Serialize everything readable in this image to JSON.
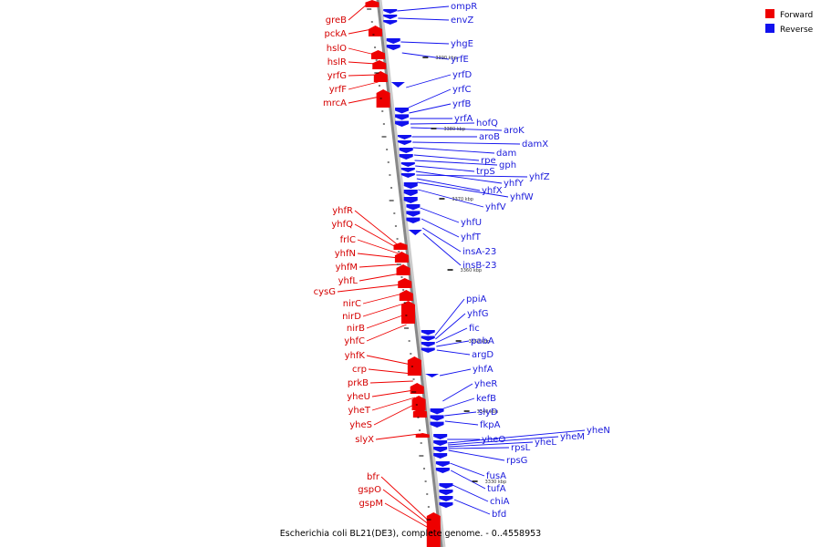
{
  "caption": "Escherichia coli BL21(DE3), complete genome. - 0..4558953",
  "legend": [
    {
      "label": "Forward",
      "color": "#ee0000"
    },
    {
      "label": "Reverse",
      "color": "#1111ee"
    }
  ],
  "colors": {
    "forward": "#ee0000",
    "reverse": "#1111ee",
    "forward_text": "#d40000",
    "reverse_text": "#1a1adb",
    "backbone": "#888888"
  },
  "ticks": [
    "3390 kbp",
    "3380 kbp",
    "3370 kbp",
    "3360 kbp",
    "3350 kbp",
    "3340 kbp",
    "3330 kbp"
  ],
  "forward_genes": [
    "greB",
    "pckA",
    "hslO",
    "hslR",
    "yrfG",
    "yrfF",
    "mrcA",
    "yhfR",
    "yhfQ",
    "frlC",
    "yhfN",
    "yhfM",
    "yhfL",
    "cysG",
    "nirC",
    "nirD",
    "nirB",
    "yhfC",
    "yhfK",
    "crp",
    "prkB",
    "yheU",
    "yheT",
    "yheS",
    "slyX",
    "bfr",
    "gspO",
    "gspM"
  ],
  "reverse_genes": [
    "ompR",
    "envZ",
    "yhgE",
    "yrfE",
    "yrfD",
    "yrfC",
    "yrfB",
    "yrfA",
    "hofQ",
    "aroK",
    "aroB",
    "damX",
    "dam",
    "rpe",
    "gph",
    "trpS",
    "yhfY",
    "yhfZ",
    "yhfX",
    "yhfW",
    "yhfV",
    "yhfU",
    "yhfT",
    "insA-23",
    "insB-23",
    "ppiA",
    "yhfG",
    "fic",
    "pabA",
    "argD",
    "yhfA",
    "yheR",
    "kefB",
    "slyD",
    "fkpA",
    "yheO",
    "yheN",
    "yheM",
    "yheL",
    "rpsL",
    "rpsG",
    "fusA",
    "tufA",
    "chiA",
    "bfd"
  ]
}
